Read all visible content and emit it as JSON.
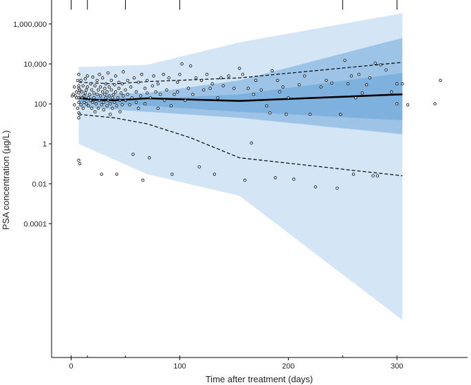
{
  "chart_data": {
    "type": "scatter",
    "title": "",
    "xlabel": "Time after treatment (days)",
    "ylabel": "PSA concentration (µg/L)",
    "y_scale": "log10",
    "xlim": [
      -18,
      365
    ],
    "ylim_log10": [
      -10.7,
      7.2
    ],
    "x_ticks": [
      0,
      100,
      200,
      300
    ],
    "x_tick_labels": [
      "0",
      "100",
      "200",
      "300"
    ],
    "y_ticks": [
      0.0001,
      0.01,
      1,
      100,
      10000,
      1000000
    ],
    "y_tick_labels": [
      "0.0001",
      "0.01",
      "1",
      "100",
      "10,000",
      "1,000,000"
    ],
    "sampling_time_rug": [
      0,
      15,
      50,
      100,
      250,
      300
    ],
    "colors": {
      "outer_band": "#d4e5f6",
      "inner_band": "#5b9bd5",
      "median_line": "#000000",
      "percentile_lines": "#000000",
      "points": "#000000"
    },
    "bands": {
      "outer_90pct_pi": {
        "x": [
          7,
          70,
          155,
          305
        ],
        "lower": [
          1,
          0.03,
          0.0025,
          1.5e-09
        ],
        "upper": [
          7000,
          9000,
          120000,
          3500000
        ]
      },
      "median_ci_wide": {
        "x": [
          7,
          70,
          155,
          305
        ],
        "lower": [
          70,
          40,
          20,
          3
        ],
        "upper": [
          300,
          350,
          1500,
          200000
        ]
      },
      "median_ci_narrow": {
        "x": [
          7,
          70,
          155,
          305
        ],
        "lower": [
          120,
          80,
          40,
          15
        ],
        "upper": [
          220,
          180,
          300,
          3500
        ]
      }
    },
    "series": [
      {
        "kind": "median",
        "x": [
          7,
          20,
          40,
          70,
          155,
          305
        ],
        "y": [
          200,
          160,
          150,
          190,
          140,
          300
        ]
      },
      {
        "kind": "p95",
        "x": [
          7,
          40,
          70,
          155,
          305
        ],
        "y": [
          1200,
          1000,
          1300,
          2000,
          12000
        ]
      },
      {
        "kind": "p5",
        "x": [
          7,
          40,
          70,
          110,
          155,
          305
        ],
        "y": [
          30,
          20,
          10,
          2,
          0.2,
          0.025
        ]
      }
    ],
    "points": [
      [
        1,
        250
      ],
      [
        2,
        300
      ],
      [
        3,
        700
      ],
      [
        3,
        90
      ],
      [
        4,
        250
      ],
      [
        5,
        200
      ],
      [
        5,
        400
      ],
      [
        6,
        1500
      ],
      [
        6,
        60
      ],
      [
        7,
        3000
      ],
      [
        7,
        800
      ],
      [
        7,
        120
      ],
      [
        7,
        200
      ],
      [
        7,
        350
      ],
      [
        7,
        600
      ],
      [
        7,
        35
      ],
      [
        7,
        20
      ],
      [
        7,
        0.15
      ],
      [
        8,
        0.1
      ],
      [
        8,
        30
      ],
      [
        8,
        500
      ],
      [
        9,
        1500
      ],
      [
        9,
        90
      ],
      [
        10,
        200
      ],
      [
        10,
        400
      ],
      [
        11,
        800
      ],
      [
        11,
        60
      ],
      [
        12,
        250
      ],
      [
        12,
        120
      ],
      [
        13,
        350
      ],
      [
        13,
        1800
      ],
      [
        14,
        100
      ],
      [
        14,
        500
      ],
      [
        15,
        700
      ],
      [
        15,
        2500
      ],
      [
        16,
        200
      ],
      [
        16,
        80
      ],
      [
        17,
        300
      ],
      [
        18,
        150
      ],
      [
        18,
        1000
      ],
      [
        19,
        500
      ],
      [
        19,
        60
      ],
      [
        20,
        2200
      ],
      [
        20,
        120
      ],
      [
        21,
        350
      ],
      [
        21,
        200
      ],
      [
        22,
        800
      ],
      [
        22,
        40
      ],
      [
        23,
        100
      ],
      [
        24,
        300
      ],
      [
        24,
        1500
      ],
      [
        25,
        60
      ],
      [
        25,
        500
      ],
      [
        26,
        3000
      ],
      [
        26,
        150
      ],
      [
        27,
        250
      ],
      [
        27,
        700
      ],
      [
        28,
        90
      ],
      [
        28,
        0.03
      ],
      [
        29,
        400
      ],
      [
        29,
        2000
      ],
      [
        30,
        120
      ],
      [
        30,
        50
      ],
      [
        31,
        600
      ],
      [
        31,
        300
      ],
      [
        32,
        200
      ],
      [
        32,
        1000
      ],
      [
        33,
        80
      ],
      [
        33,
        400
      ],
      [
        34,
        3500
      ],
      [
        34,
        150
      ],
      [
        35,
        250
      ],
      [
        35,
        700
      ],
      [
        36,
        100
      ],
      [
        36,
        30
      ],
      [
        37,
        500
      ],
      [
        37,
        1500
      ],
      [
        38,
        200
      ],
      [
        38,
        60
      ],
      [
        39,
        300
      ],
      [
        40,
        900
      ],
      [
        40,
        120
      ],
      [
        41,
        2500
      ],
      [
        41,
        400
      ],
      [
        42,
        80
      ],
      [
        42,
        0.03
      ],
      [
        43,
        200
      ],
      [
        44,
        600
      ],
      [
        44,
        1200
      ],
      [
        45,
        150
      ],
      [
        45,
        40
      ],
      [
        46,
        350
      ],
      [
        47,
        1000
      ],
      [
        47,
        90
      ],
      [
        48,
        250
      ],
      [
        48,
        4000
      ],
      [
        50,
        500
      ],
      [
        50,
        150
      ],
      [
        52,
        300
      ],
      [
        52,
        1500
      ],
      [
        54,
        90
      ],
      [
        55,
        700
      ],
      [
        56,
        200
      ],
      [
        57,
        0.3
      ],
      [
        58,
        2000
      ],
      [
        60,
        400
      ],
      [
        60,
        120
      ],
      [
        62,
        1200
      ],
      [
        62,
        60
      ],
      [
        64,
        250
      ],
      [
        65,
        3000
      ],
      [
        66,
        0.015
      ],
      [
        68,
        100
      ],
      [
        68,
        600
      ],
      [
        70,
        350
      ],
      [
        70,
        1500
      ],
      [
        72,
        0.2
      ],
      [
        73,
        200
      ],
      [
        75,
        800
      ],
      [
        76,
        2500
      ],
      [
        78,
        400
      ],
      [
        80,
        1000
      ],
      [
        80,
        60
      ],
      [
        82,
        300
      ],
      [
        85,
        3000
      ],
      [
        86,
        150
      ],
      [
        88,
        500
      ],
      [
        90,
        2000
      ],
      [
        92,
        80
      ],
      [
        93,
        0.03
      ],
      [
        95,
        300
      ],
      [
        98,
        400
      ],
      [
        98,
        1200
      ],
      [
        100,
        3000
      ],
      [
        102,
        10000
      ],
      [
        105,
        150
      ],
      [
        108,
        600
      ],
      [
        110,
        8000
      ],
      [
        112,
        300
      ],
      [
        115,
        2000
      ],
      [
        118,
        0.07
      ],
      [
        120,
        1500
      ],
      [
        122,
        500
      ],
      [
        125,
        3000
      ],
      [
        128,
        600
      ],
      [
        130,
        1000
      ],
      [
        132,
        0.03
      ],
      [
        135,
        200
      ],
      [
        138,
        2000
      ],
      [
        140,
        800
      ],
      [
        145,
        2500
      ],
      [
        150,
        600
      ],
      [
        155,
        6000
      ],
      [
        158,
        3000
      ],
      [
        160,
        0.015
      ],
      [
        163,
        600
      ],
      [
        166,
        1.1
      ],
      [
        168,
        300
      ],
      [
        170,
        1500
      ],
      [
        175,
        500
      ],
      [
        180,
        80
      ],
      [
        183,
        35
      ],
      [
        185,
        4500
      ],
      [
        188,
        0.02
      ],
      [
        190,
        1500
      ],
      [
        192,
        400
      ],
      [
        195,
        700
      ],
      [
        198,
        30
      ],
      [
        200,
        200
      ],
      [
        205,
        0.017
      ],
      [
        210,
        900
      ],
      [
        215,
        2500
      ],
      [
        220,
        30
      ],
      [
        225,
        0.007
      ],
      [
        230,
        700
      ],
      [
        235,
        1500
      ],
      [
        240,
        1100
      ],
      [
        245,
        0.006
      ],
      [
        248,
        30
      ],
      [
        252,
        15000
      ],
      [
        255,
        1000
      ],
      [
        258,
        2500
      ],
      [
        260,
        0.03
      ],
      [
        262,
        200
      ],
      [
        265,
        3000
      ],
      [
        268,
        350
      ],
      [
        272,
        900
      ],
      [
        275,
        2000
      ],
      [
        278,
        0.025
      ],
      [
        280,
        11000
      ],
      [
        282,
        0.025
      ],
      [
        285,
        9000
      ],
      [
        290,
        5000
      ],
      [
        295,
        400
      ],
      [
        300,
        1000
      ],
      [
        300,
        100
      ],
      [
        305,
        1000
      ],
      [
        310,
        90
      ],
      [
        335,
        100
      ],
      [
        340,
        1500
      ]
    ]
  }
}
